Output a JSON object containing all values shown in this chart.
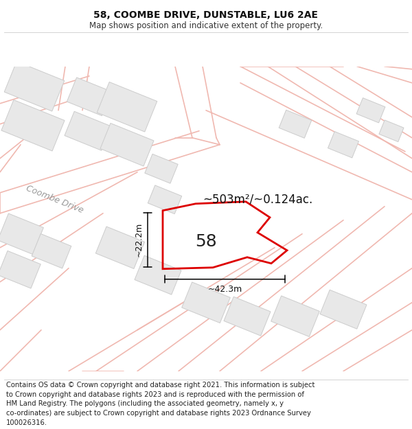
{
  "title": "58, COOMBE DRIVE, DUNSTABLE, LU6 2AE",
  "subtitle": "Map shows position and indicative extent of the property.",
  "footer_line1": "Contains OS data © Crown copyright and database right 2021. This information is subject",
  "footer_line2": "to Crown copyright and database rights 2023 and is reproduced with the permission of",
  "footer_line3": "HM Land Registry. The polygons (including the associated geometry, namely x, y",
  "footer_line4": "co-ordinates) are subject to Crown copyright and database rights 2023 Ordnance Survey",
  "footer_line5": "100026316.",
  "bg_color": "#ffffff",
  "map_bg": "#ffffff",
  "road_color": "#f0b8b0",
  "highlight_color": "#dd0000",
  "building_color": "#e8e8e8",
  "building_edge": "#cccccc",
  "label_area": "~503m²/~0.124ac.",
  "label_number": "58",
  "dim_width": "~42.3m",
  "dim_height": "~22.2m",
  "road_label": "Coombe Drive",
  "title_fontsize": 10,
  "subtitle_fontsize": 8.5,
  "footer_fontsize": 7.2
}
